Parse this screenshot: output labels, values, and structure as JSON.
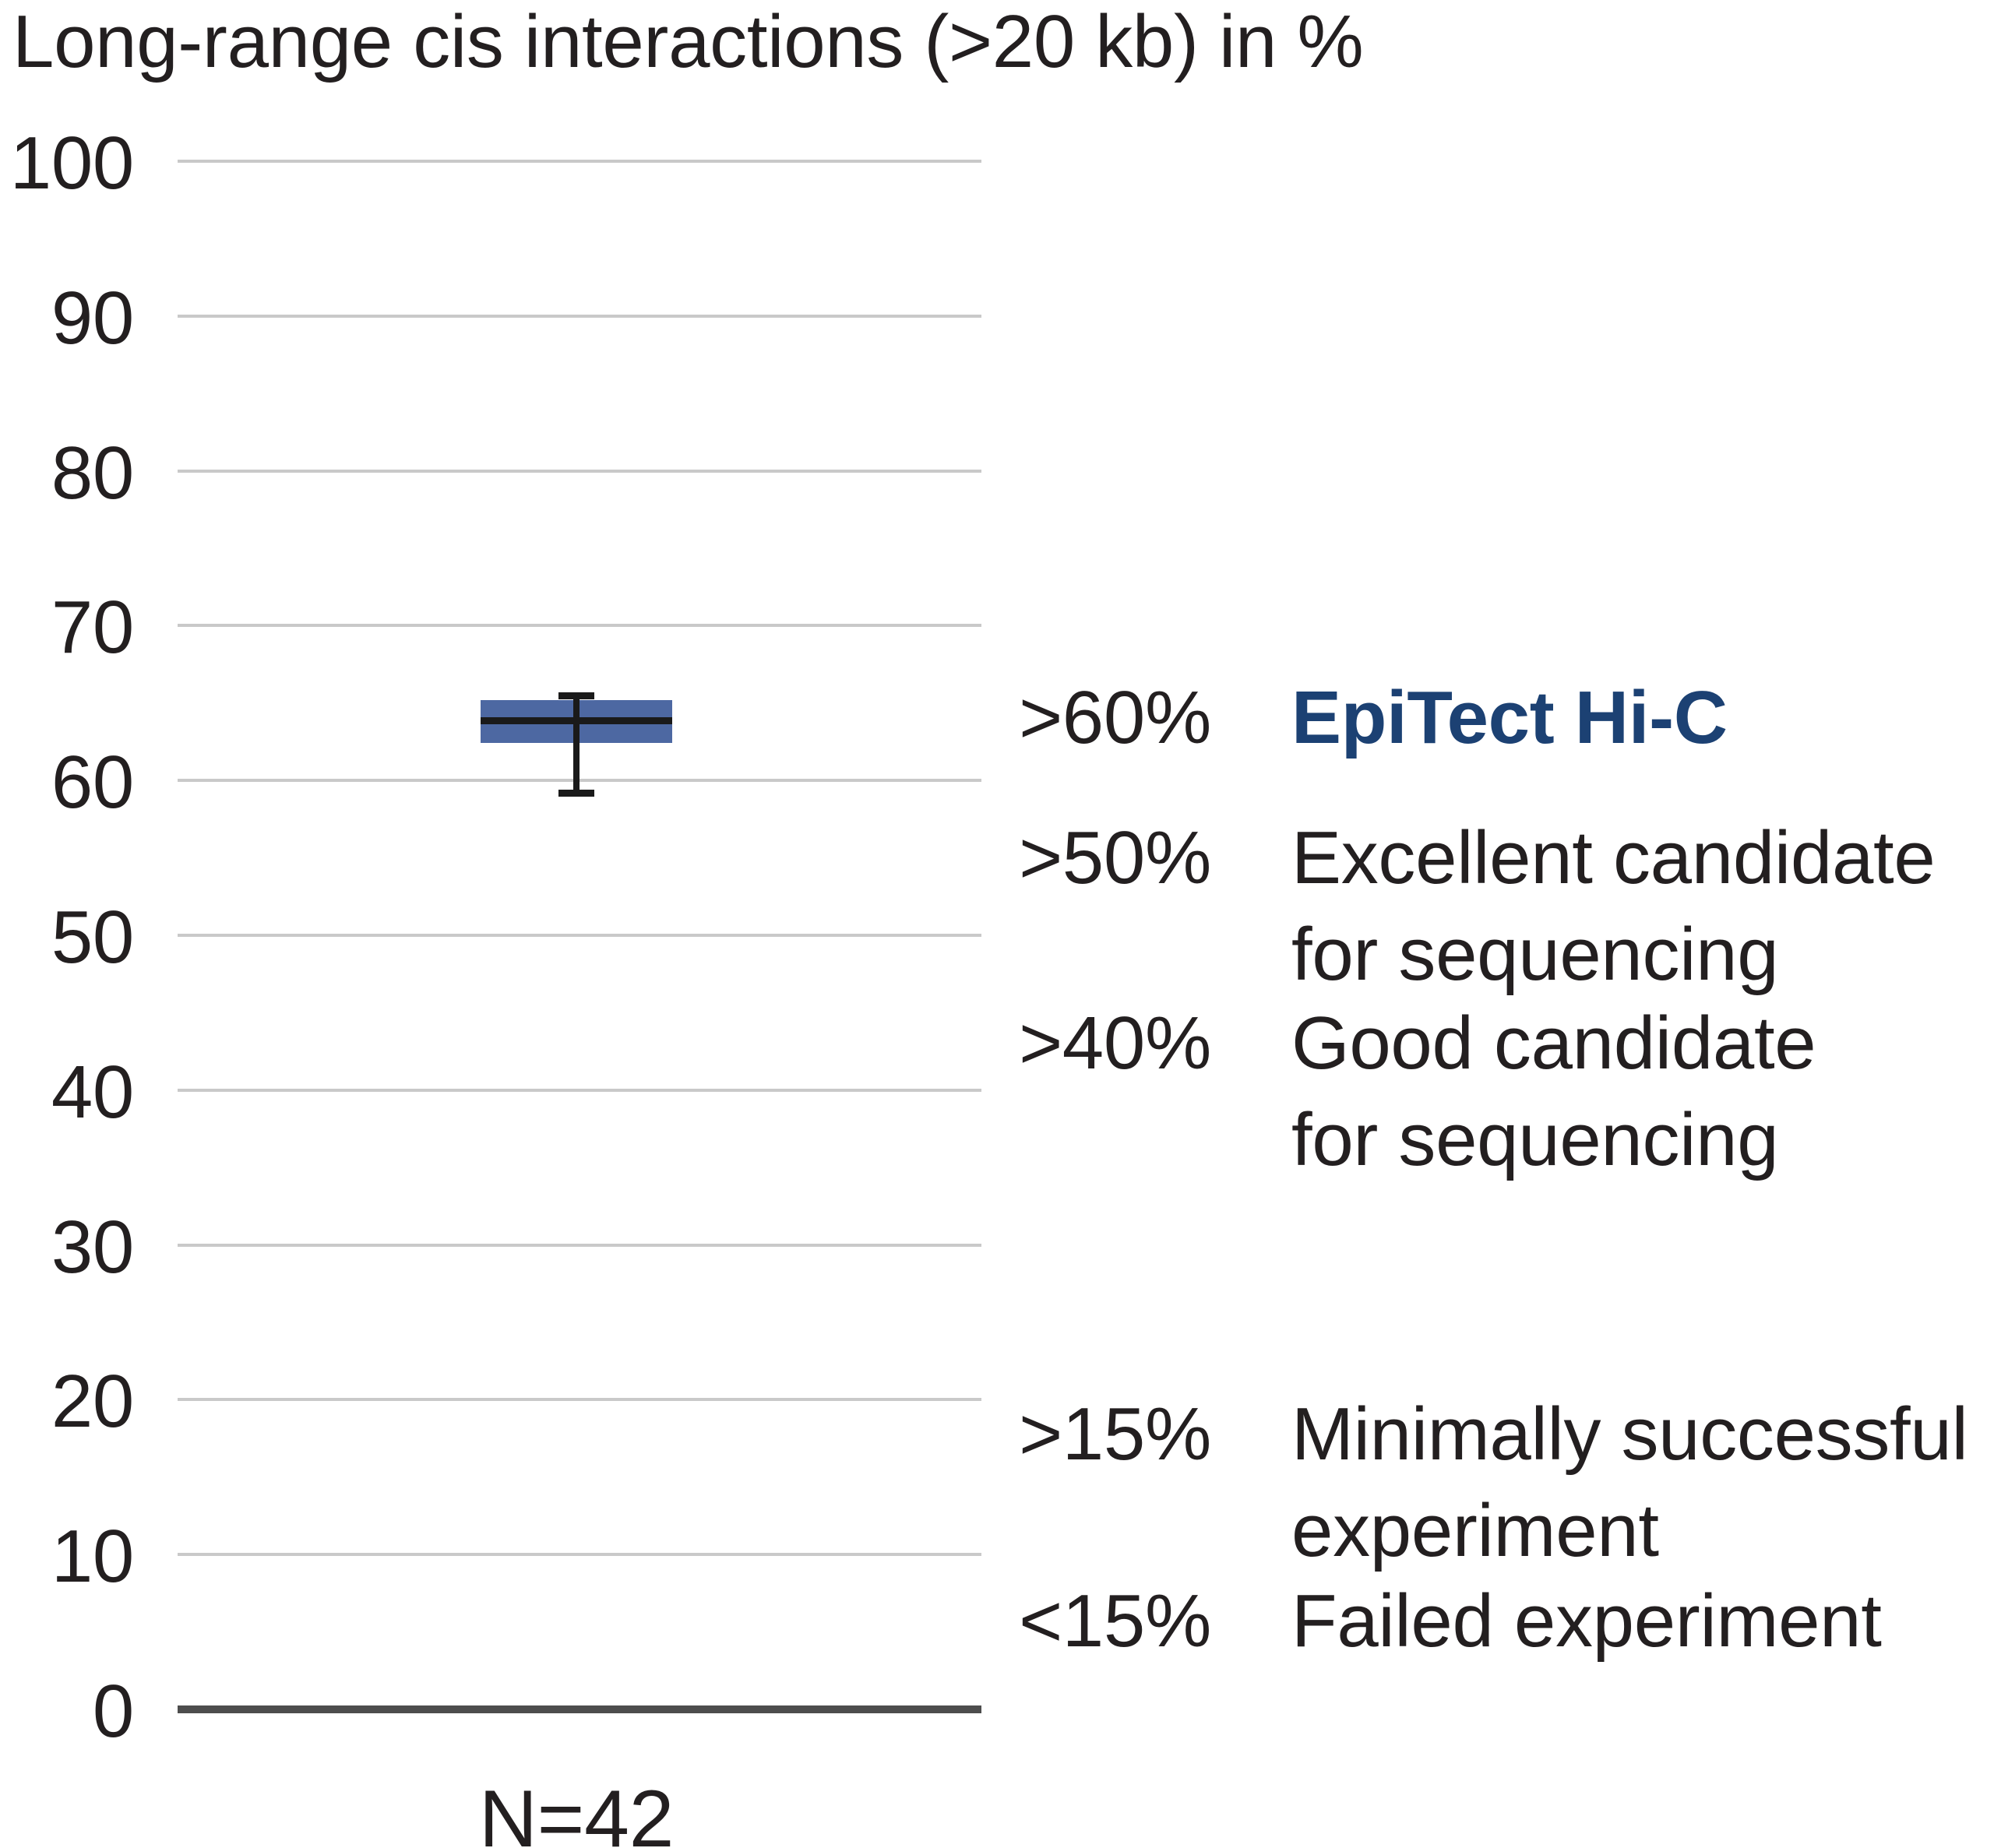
{
  "chart_data": {
    "type": "box",
    "title": "Long-range cis interactions (>20 kb) in %",
    "xlabel": "",
    "ylabel": "",
    "ylim": [
      0,
      100
    ],
    "yticks": [
      0,
      10,
      20,
      30,
      40,
      50,
      60,
      70,
      80,
      90,
      100
    ],
    "grid": "horizontal",
    "legend_position": "none",
    "series": [
      {
        "name": "EpiTect Hi-C",
        "sample_size_label": "N=42",
        "whisker_low": 59.2,
        "q1": 62.4,
        "median": 63.9,
        "q3": 65.2,
        "whisker_high": 65.5
      }
    ],
    "annotations": [
      {
        "threshold": ">60%",
        "lines": [
          "EpiTect Hi-C"
        ],
        "highlight": true
      },
      {
        "threshold": ">50%",
        "lines": [
          "Excellent candidate",
          "for sequencing"
        ],
        "highlight": false
      },
      {
        "threshold": ">40%",
        "lines": [
          "Good candidate",
          "for sequencing"
        ],
        "highlight": false
      },
      {
        "threshold": ">15%",
        "lines": [
          "Minimally successful",
          "experiment"
        ],
        "highlight": false
      },
      {
        "threshold": "<15%",
        "lines": [
          "Failed experiment"
        ],
        "highlight": false
      }
    ],
    "colors": {
      "box_fill": "#4d68a2",
      "median": "#1a1a1a",
      "whisker": "#1a1a1a",
      "gridline": "#c9c9c9",
      "axis_line": "#4d4d4d",
      "text": "#231f20",
      "highlight_text": "#1c4173"
    }
  }
}
